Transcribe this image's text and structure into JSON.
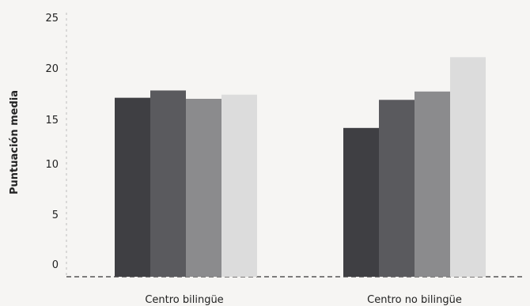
{
  "chart_data": {
    "type": "bar",
    "categories": [
      "Centro bilingüe",
      "Centro no bilingüe"
    ],
    "series": [
      {
        "values": [
          17.2,
          14.3
        ],
        "color": "#3f3f43"
      },
      {
        "values": [
          17.9,
          17.0
        ],
        "color": "#5a5a5e"
      },
      {
        "values": [
          17.1,
          17.8
        ],
        "color": "#8b8b8d"
      },
      {
        "values": [
          17.5,
          21.1
        ],
        "color": "#dcdcdc"
      }
    ],
    "title": "",
    "xlabel": "",
    "ylabel": "Puntuación media",
    "ylim": [
      0,
      25
    ],
    "yticks": [
      "25",
      "20",
      "15",
      "10",
      "5",
      "0"
    ],
    "grid": false
  }
}
